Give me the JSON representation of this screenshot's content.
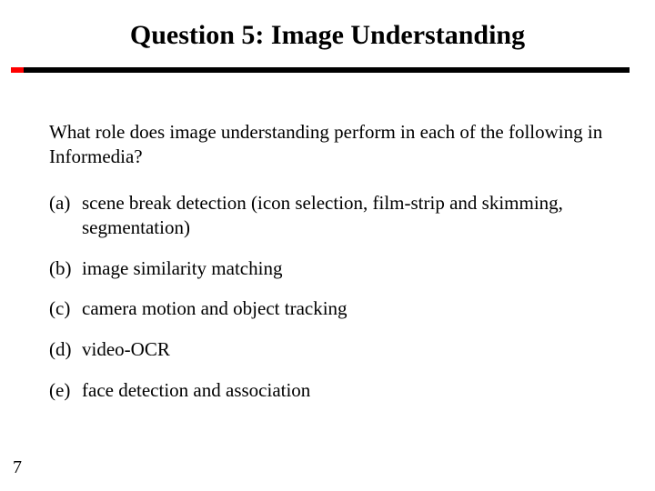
{
  "title": "Question 5: Image Understanding",
  "prompt": "What role does image understanding perform in each of the following in Informedia?",
  "options": [
    {
      "letter": "(a)",
      "text": "scene break detection (icon selection, film-strip and skimming, segmentation)"
    },
    {
      "letter": "(b)",
      "text": "image similarity matching"
    },
    {
      "letter": "(c)",
      "text": "camera motion and object tracking"
    },
    {
      "letter": "(d)",
      "text": "video-OCR"
    },
    {
      "letter": "(e)",
      "text": "face detection and association"
    }
  ],
  "page_number": "7",
  "colors": {
    "background": "#ffffff",
    "text": "#000000",
    "rule": "#000000",
    "accent": "#ff0000"
  },
  "typography": {
    "family": "Times New Roman",
    "title_size_pt": 30,
    "body_size_pt": 21,
    "page_num_size_pt": 20
  }
}
